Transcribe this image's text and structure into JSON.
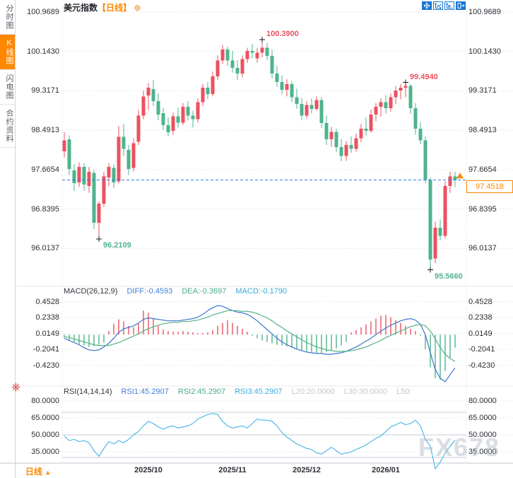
{
  "sidebar": {
    "items": [
      {
        "label": "分时图",
        "active": false
      },
      {
        "label": "K线图",
        "active": true
      },
      {
        "label": "闪电图",
        "active": false
      },
      {
        "label": "合约资料",
        "active": false
      }
    ]
  },
  "header": {
    "title": "美元指数",
    "period_tag": "【日线】",
    "expand_icon": "⊕"
  },
  "toolbar": {
    "icons": [
      "pan-tool-icon",
      "axis-scale-icon",
      "axis-playback-icon",
      "exit-chart-icon"
    ]
  },
  "current_price": {
    "label": "97.4518",
    "value": 97.4518
  },
  "macd_header": {
    "name": "MACD(26,12,9)",
    "diff": "DIFF:-0.4593",
    "dea": "DEA:-0.3697",
    "macd": "MACD:-0.1790"
  },
  "rsi_header": {
    "name": "RSI(14,14,14)",
    "rsi1": "RSI1:45.2907",
    "rsi2": "RSI2:45.2907",
    "rsi3": "RSI3:45.2907",
    "l20": "L20:20.0000",
    "l30": "L30:30.0000",
    "l50": "L50:"
  },
  "x_axis": {
    "labels": [
      "2025/10",
      "2025/11",
      "2025/12",
      "2026/01"
    ]
  },
  "bottom_left": {
    "label": "日线",
    "arrow": "▲"
  },
  "watermark": "FX678",
  "colors": {
    "up": "#ec5160",
    "down": "#4eb48c",
    "accent": "#ff8800",
    "dashed": "#2b7de0",
    "diff_line": "#3b76cc",
    "dea_line": "#52b284",
    "rsi_line": "#43b3e6",
    "grid": "#d6d9e2",
    "level": "#c9cbd4",
    "axis_text": "#2c2f36",
    "divider": "#e8e8ee",
    "axis_line": "#c2c4cc"
  },
  "chart_data": [
    {
      "type": "candlestick",
      "title": "美元指数 日线",
      "x_tick_labels": [
        "2025/10",
        "2025/11",
        "2025/12",
        "2026/01"
      ],
      "x_tick_indices": [
        17,
        34,
        49,
        65
      ],
      "y_axis_labels": [
        "100.9689",
        "100.1430",
        "99.3171",
        "98.4913",
        "97.6654",
        "96.8395",
        "96.0137"
      ],
      "y_axis_values": [
        100.9689,
        100.143,
        99.3171,
        98.4913,
        97.6654,
        96.8395,
        96.0137
      ],
      "current_price": 97.4518,
      "marked_points": [
        {
          "index": 40,
          "kind": "high",
          "label": "100.3900",
          "value": 100.39
        },
        {
          "index": 69,
          "kind": "high",
          "label": "99.4940",
          "value": 99.494
        },
        {
          "index": 7,
          "kind": "low",
          "label": "96.2109",
          "value": 96.2109
        },
        {
          "index": 74,
          "kind": "low",
          "label": "95.5660",
          "value": 95.566
        }
      ],
      "candles_ohlc": [
        [
          98.05,
          98.45,
          97.92,
          98.28
        ],
        [
          98.3,
          98.38,
          97.55,
          97.68
        ],
        [
          97.65,
          97.78,
          97.22,
          97.38
        ],
        [
          97.4,
          97.82,
          97.3,
          97.72
        ],
        [
          97.72,
          97.8,
          97.22,
          97.35
        ],
        [
          97.32,
          97.72,
          97.18,
          97.62
        ],
        [
          97.6,
          97.66,
          96.42,
          96.55
        ],
        [
          96.55,
          97.0,
          96.2109,
          96.95
        ],
        [
          96.95,
          97.62,
          96.88,
          97.52
        ],
        [
          97.5,
          97.8,
          97.32,
          97.72
        ],
        [
          97.7,
          97.78,
          97.28,
          97.4
        ],
        [
          97.42,
          98.58,
          97.38,
          98.35
        ],
        [
          98.35,
          98.62,
          97.95,
          98.1
        ],
        [
          98.08,
          98.18,
          97.55,
          97.68
        ],
        [
          97.7,
          98.32,
          97.62,
          98.22
        ],
        [
          98.25,
          98.92,
          98.18,
          98.8
        ],
        [
          98.8,
          99.32,
          98.72,
          99.2
        ],
        [
          99.22,
          99.48,
          98.92,
          99.38
        ],
        [
          99.35,
          99.54,
          99.0,
          99.1
        ],
        [
          99.1,
          99.26,
          98.7,
          98.82
        ],
        [
          98.85,
          98.96,
          98.5,
          98.6
        ],
        [
          98.6,
          98.76,
          98.36,
          98.45
        ],
        [
          98.48,
          98.86,
          98.4,
          98.78
        ],
        [
          98.78,
          98.96,
          98.55,
          98.65
        ],
        [
          98.65,
          99.06,
          98.6,
          98.98
        ],
        [
          98.98,
          99.1,
          98.7,
          98.8
        ],
        [
          98.8,
          98.9,
          98.55,
          98.72
        ],
        [
          98.72,
          99.16,
          98.65,
          99.08
        ],
        [
          99.08,
          99.46,
          99.0,
          99.38
        ],
        [
          99.38,
          99.5,
          99.14,
          99.25
        ],
        [
          99.25,
          99.72,
          99.2,
          99.62
        ],
        [
          99.62,
          100.06,
          99.55,
          99.95
        ],
        [
          99.95,
          100.28,
          99.88,
          100.18
        ],
        [
          100.18,
          100.24,
          99.84,
          99.95
        ],
        [
          99.95,
          100.16,
          99.7,
          99.8
        ],
        [
          99.8,
          99.96,
          99.54,
          99.68
        ],
        [
          99.68,
          100.06,
          99.6,
          99.98
        ],
        [
          99.98,
          100.22,
          99.9,
          100.15
        ],
        [
          100.15,
          100.3,
          100.0,
          100.12
        ],
        [
          100.0,
          100.22,
          99.9,
          100.12
        ],
        [
          100.12,
          100.39,
          100.02,
          100.22
        ],
        [
          100.22,
          100.32,
          99.96,
          100.05
        ],
        [
          100.05,
          100.18,
          99.58,
          99.68
        ],
        [
          99.68,
          99.84,
          99.4,
          99.5
        ],
        [
          99.5,
          99.64,
          99.24,
          99.34
        ],
        [
          99.34,
          99.56,
          99.2,
          99.46
        ],
        [
          99.46,
          99.52,
          99.08,
          99.18
        ],
        [
          99.18,
          99.36,
          98.94,
          99.04
        ],
        [
          99.04,
          99.16,
          98.7,
          98.8
        ],
        [
          98.8,
          99.1,
          98.74,
          99.02
        ],
        [
          99.02,
          99.16,
          98.84,
          98.94
        ],
        [
          98.94,
          99.2,
          98.9,
          99.12
        ],
        [
          99.12,
          99.18,
          98.54,
          98.64
        ],
        [
          98.64,
          98.8,
          98.18,
          98.3
        ],
        [
          98.3,
          98.56,
          98.14,
          98.46
        ],
        [
          98.46,
          98.52,
          98.04,
          98.14
        ],
        [
          98.14,
          98.3,
          97.84,
          97.95
        ],
        [
          97.95,
          98.26,
          97.85,
          98.18
        ],
        [
          98.18,
          98.36,
          98.02,
          98.1
        ],
        [
          98.1,
          98.42,
          98.04,
          98.32
        ],
        [
          98.32,
          98.62,
          98.24,
          98.52
        ],
        [
          98.52,
          98.76,
          98.38,
          98.48
        ],
        [
          98.48,
          98.92,
          98.44,
          98.82
        ],
        [
          98.82,
          99.06,
          98.68,
          98.98
        ],
        [
          98.98,
          99.16,
          98.78,
          99.08
        ],
        [
          99.08,
          99.22,
          98.84,
          98.95
        ],
        [
          98.95,
          99.26,
          98.88,
          99.18
        ],
        [
          99.18,
          99.42,
          99.04,
          99.32
        ],
        [
          99.32,
          99.46,
          99.14,
          99.38
        ],
        [
          99.38,
          99.494,
          99.18,
          99.42
        ],
        [
          99.42,
          99.46,
          98.84,
          98.95
        ],
        [
          98.95,
          99.06,
          98.4,
          98.52
        ],
        [
          98.52,
          98.66,
          98.2,
          98.28
        ],
        [
          98.28,
          98.36,
          97.38,
          97.45
        ],
        [
          97.45,
          97.5,
          95.566,
          95.78
        ],
        [
          95.8,
          96.58,
          95.7,
          96.45
        ],
        [
          96.45,
          96.62,
          96.18,
          96.28
        ],
        [
          96.28,
          97.42,
          96.22,
          97.32
        ],
        [
          97.32,
          97.62,
          97.18,
          97.52
        ],
        [
          97.52,
          97.62,
          97.3,
          97.4518
        ]
      ]
    },
    {
      "type": "bar",
      "name": "MACD",
      "params": "26,12,9",
      "y_axis_labels": [
        "0.4528",
        "0.2338",
        "0.0149",
        "-0.2041",
        "-0.4230"
      ],
      "y_axis_values": [
        0.4528,
        0.2338,
        0.0149,
        -0.2041,
        -0.423
      ],
      "current": {
        "diff": -0.4593,
        "dea": -0.3697,
        "macd": -0.179
      },
      "histogram": [
        -0.04,
        -0.08,
        -0.1,
        -0.13,
        -0.15,
        -0.17,
        -0.16,
        -0.14,
        -0.11,
        0.05,
        0.15,
        0.21,
        0.18,
        0.12,
        0.1,
        0.15,
        0.33,
        0.3,
        0.22,
        0.12,
        0.07,
        0.05,
        0.04,
        0.04,
        0.05,
        0.04,
        0.03,
        0.02,
        0.02,
        0.03,
        0.06,
        0.12,
        0.16,
        0.2,
        0.16,
        0.12,
        0.08,
        0.04,
        -0.02,
        -0.05,
        -0.08,
        -0.1,
        -0.12,
        -0.14,
        -0.15,
        -0.16,
        -0.18,
        -0.2,
        -0.22,
        -0.23,
        -0.24,
        -0.25,
        -0.25,
        -0.24,
        -0.22,
        -0.19,
        -0.15,
        -0.1,
        0.03,
        0.06,
        0.1,
        0.14,
        0.18,
        0.22,
        0.26,
        0.27,
        0.24,
        0.2,
        0.16,
        0.12,
        0.08,
        0.05,
        -0.02,
        -0.2,
        -0.45,
        -0.6,
        -0.62,
        -0.5,
        -0.32,
        -0.179
      ],
      "diff": [
        -0.05,
        -0.08,
        -0.11,
        -0.14,
        -0.18,
        -0.21,
        -0.22,
        -0.21,
        -0.17,
        -0.12,
        -0.05,
        0.03,
        0.08,
        0.1,
        0.12,
        0.16,
        0.21,
        0.23,
        0.22,
        0.21,
        0.2,
        0.19,
        0.19,
        0.19,
        0.2,
        0.21,
        0.22,
        0.24,
        0.28,
        0.33,
        0.37,
        0.4,
        0.39,
        0.36,
        0.33,
        0.31,
        0.3,
        0.28,
        0.24,
        0.19,
        0.13,
        0.07,
        0.01,
        -0.05,
        -0.1,
        -0.14,
        -0.17,
        -0.2,
        -0.22,
        -0.24,
        -0.25,
        -0.26,
        -0.26,
        -0.27,
        -0.27,
        -0.26,
        -0.25,
        -0.23,
        -0.2,
        -0.17,
        -0.13,
        -0.09,
        -0.05,
        0.0,
        0.05,
        0.09,
        0.13,
        0.16,
        0.19,
        0.21,
        0.22,
        0.2,
        0.14,
        0.0,
        -0.25,
        -0.48,
        -0.6,
        -0.65,
        -0.55,
        -0.4593
      ],
      "dea": [
        -0.03,
        -0.04,
        -0.06,
        -0.08,
        -0.1,
        -0.12,
        -0.14,
        -0.15,
        -0.15,
        -0.15,
        -0.13,
        -0.11,
        -0.08,
        -0.05,
        -0.02,
        0.01,
        0.05,
        0.08,
        0.11,
        0.13,
        0.15,
        0.16,
        0.17,
        0.17,
        0.18,
        0.18,
        0.19,
        0.2,
        0.22,
        0.24,
        0.27,
        0.29,
        0.31,
        0.33,
        0.33,
        0.33,
        0.32,
        0.32,
        0.31,
        0.29,
        0.26,
        0.23,
        0.19,
        0.14,
        0.1,
        0.05,
        0.01,
        -0.03,
        -0.07,
        -0.11,
        -0.14,
        -0.17,
        -0.19,
        -0.21,
        -0.22,
        -0.23,
        -0.23,
        -0.23,
        -0.22,
        -0.21,
        -0.19,
        -0.17,
        -0.14,
        -0.11,
        -0.08,
        -0.04,
        -0.01,
        0.02,
        0.05,
        0.08,
        0.11,
        0.13,
        0.14,
        0.12,
        0.05,
        -0.06,
        -0.18,
        -0.27,
        -0.33,
        -0.3697
      ]
    },
    {
      "type": "line",
      "name": "RSI",
      "params": "14,14,14",
      "y_axis_labels": [
        "80.0000",
        "65.0000",
        "50.0000",
        "35.0000"
      ],
      "y_axis_values": [
        80,
        65,
        50,
        35
      ],
      "levels": [
        70,
        50,
        30
      ],
      "current": {
        "rsi1": 45.2907,
        "rsi2": 45.2907,
        "rsi3": 45.2907
      },
      "rsi": [
        49,
        45,
        46,
        44,
        45,
        43,
        36,
        31,
        38,
        44,
        42,
        45,
        43,
        46,
        50,
        53,
        58,
        62,
        60,
        57,
        55,
        57,
        58,
        56,
        57,
        58,
        60,
        64,
        66,
        68,
        69,
        68,
        62,
        58,
        56,
        57,
        58,
        56,
        60,
        64,
        63,
        63,
        62,
        58,
        52,
        48,
        45,
        42,
        40,
        38,
        37,
        34,
        33,
        36,
        39,
        36,
        33,
        34,
        35,
        37,
        39,
        41,
        44,
        47,
        49,
        53,
        57,
        59,
        61,
        59,
        60,
        63,
        58,
        46,
        40,
        20,
        26,
        34,
        40,
        45.2907
      ]
    }
  ]
}
